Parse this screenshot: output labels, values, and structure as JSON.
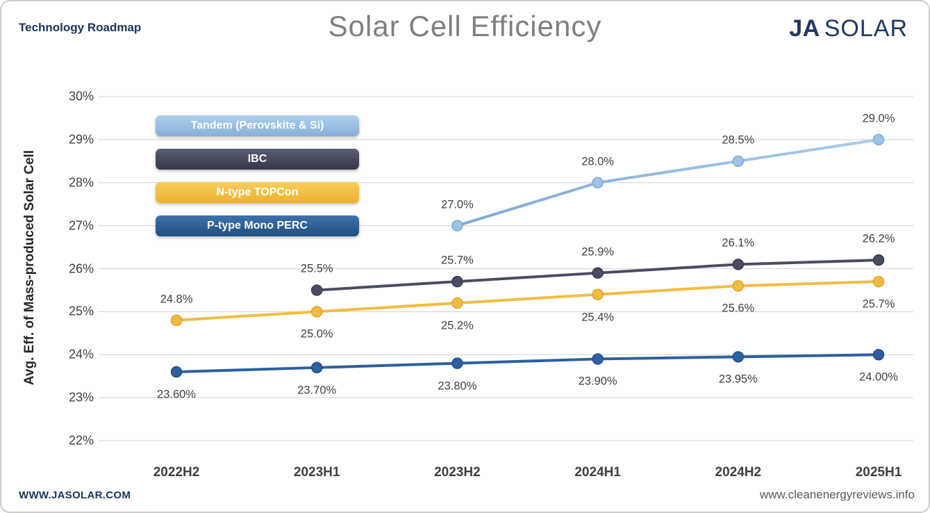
{
  "header": {
    "roadmap_label": "Technology Roadmap",
    "title": "Solar Cell Efficiency",
    "logo": {
      "ja": "JA",
      "solar": "SOLAR"
    }
  },
  "footer": {
    "site_left": "WWW.JASOLAR.COM",
    "site_right": "www.cleanenergyreviews.info"
  },
  "chart_data": {
    "type": "line",
    "title": "Solar Cell Efficiency",
    "xlabel": "",
    "ylabel": "Avg. Eff. of Mass-produced Solar Cell",
    "ylim": [
      22,
      30
    ],
    "y_ticks": [
      "30%",
      "29%",
      "28%",
      "27%",
      "26%",
      "25%",
      "24%",
      "23%",
      "22%"
    ],
    "grid": true,
    "legend_position": "upper-left",
    "categories": [
      "2022H2",
      "2023H1",
      "2023H2",
      "2024H1",
      "2024H2",
      "2025H1"
    ],
    "series": [
      {
        "name": "Tandem (Perovskite & Si)",
        "color": "#9DC3E6",
        "marker_stroke": "#7FA9D1",
        "legend_gradient": [
          "#AFCFEA",
          "#85B1DB"
        ],
        "line_gradient": [
          "#7FA9D4",
          "#A9CCEA"
        ],
        "values": [
          null,
          null,
          27.0,
          28.0,
          28.5,
          29.0
        ],
        "point_labels": [
          "",
          "",
          "27.0%",
          "28.0%",
          "28.5%",
          "29.0%"
        ],
        "label_side": [
          "above",
          "above",
          "above",
          "above",
          "above",
          "above"
        ]
      },
      {
        "name": "IBC",
        "color": "#4A4D61",
        "marker_stroke": "#383B4C",
        "legend_gradient": [
          "#5A5E73",
          "#343747"
        ],
        "line_gradient": null,
        "values": [
          null,
          25.5,
          25.7,
          25.9,
          26.1,
          26.2
        ],
        "point_labels": [
          "",
          "25.5%",
          "25.7%",
          "25.9%",
          "26.1%",
          "26.2%"
        ],
        "label_side": [
          "above",
          "above",
          "above",
          "above",
          "above",
          "above"
        ]
      },
      {
        "name": "N-type TOPCon",
        "color": "#F2BC42",
        "marker_stroke": "#D9A42F",
        "legend_gradient": [
          "#F8CE5C",
          "#EBB22E"
        ],
        "line_gradient": null,
        "values": [
          24.8,
          25.0,
          25.2,
          25.4,
          25.6,
          25.7
        ],
        "point_labels": [
          "24.8%",
          "25.0%",
          "25.2%",
          "25.4%",
          "25.6%",
          "25.7%"
        ],
        "label_side": [
          "above",
          "below",
          "below",
          "below",
          "below",
          "below"
        ]
      },
      {
        "name": "P-type Mono PERC",
        "color": "#2E5F9E",
        "marker_stroke": "#254E84",
        "legend_gradient": [
          "#3E72AC",
          "#1F4E80"
        ],
        "line_gradient": null,
        "values": [
          23.6,
          23.7,
          23.8,
          23.9,
          23.95,
          24.0
        ],
        "point_labels": [
          "23.60%",
          "23.70%",
          "23.80%",
          "23.90%",
          "23.95%",
          "24.00%"
        ],
        "label_side": [
          "below",
          "below",
          "below",
          "below",
          "below",
          "below"
        ]
      }
    ]
  }
}
